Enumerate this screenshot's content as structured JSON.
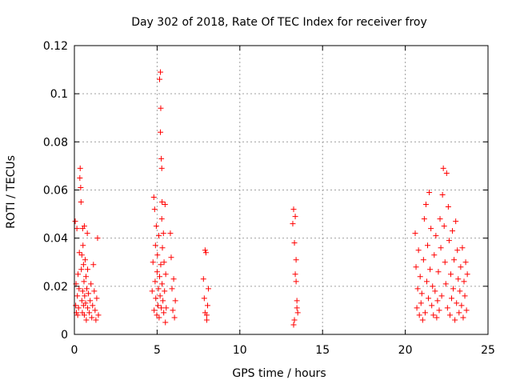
{
  "chart_data": {
    "type": "scatter",
    "title": "Day 302 of 2018, Rate Of TEC Index for receiver froy",
    "xlabel": "GPS time / hours",
    "ylabel": "ROTI / TECUs",
    "xlim": [
      0,
      25
    ],
    "ylim": [
      0,
      0.12
    ],
    "xticks": [
      0,
      5,
      10,
      15,
      20,
      25
    ],
    "xtick_labels": [
      "0",
      "5",
      "10",
      "15",
      "20",
      "25"
    ],
    "yticks": [
      0,
      0.02,
      0.04,
      0.06,
      0.08,
      0.1,
      0.12
    ],
    "ytick_labels": [
      "0",
      "0.02",
      "0.04",
      "0.06",
      "0.08",
      "0.1",
      "0.12"
    ],
    "grid": true,
    "marker": "+",
    "marker_color": "#ff0000",
    "series": [
      {
        "name": "ROTI",
        "x": [
          0.05,
          0.08,
          0.1,
          0.12,
          0.15,
          0.18,
          0.2,
          0.22,
          0.25,
          0.28,
          0.3,
          0.33,
          0.35,
          0.38,
          0.4,
          0.42,
          0.45,
          0.45,
          0.48,
          0.5,
          0.5,
          0.52,
          0.55,
          0.55,
          0.58,
          0.6,
          0.6,
          0.62,
          0.65,
          0.68,
          0.7,
          0.72,
          0.75,
          0.78,
          0.8,
          0.8,
          0.85,
          0.9,
          0.95,
          1.0,
          1.05,
          1.1,
          1.15,
          1.2,
          1.25,
          1.3,
          1.35,
          1.4,
          1.45,
          4.7,
          4.75,
          4.8,
          4.82,
          4.85,
          4.88,
          4.9,
          4.92,
          4.95,
          4.98,
          5.0,
          5.02,
          5.05,
          5.08,
          5.1,
          5.12,
          5.15,
          5.15,
          5.18,
          5.2,
          5.2,
          5.22,
          5.22,
          5.25,
          5.25,
          5.28,
          5.28,
          5.3,
          5.3,
          5.32,
          5.35,
          5.38,
          5.4,
          5.42,
          5.45,
          5.48,
          5.5,
          5.52,
          5.55,
          5.8,
          5.85,
          5.9,
          5.95,
          6.0,
          6.05,
          6.1,
          7.8,
          7.85,
          7.9,
          7.95,
          8.0,
          8.05,
          8.1,
          7.9,
          8.0,
          13.2,
          13.25,
          13.3,
          13.35,
          13.4,
          13.45,
          13.5,
          13.3,
          13.4,
          13.35,
          13.25,
          13.45,
          20.6,
          20.65,
          20.7,
          20.75,
          20.8,
          20.85,
          20.9,
          20.95,
          21.0,
          21.05,
          21.1,
          21.15,
          21.2,
          21.25,
          21.3,
          21.35,
          21.4,
          21.45,
          21.5,
          21.55,
          21.6,
          21.65,
          21.7,
          21.75,
          21.8,
          21.85,
          21.9,
          21.95,
          22.0,
          22.05,
          22.1,
          22.15,
          22.2,
          22.25,
          22.3,
          22.35,
          22.4,
          22.45,
          22.5,
          22.55,
          22.6,
          22.65,
          22.7,
          22.75,
          22.8,
          22.85,
          22.9,
          22.95,
          23.0,
          23.05,
          23.1,
          23.15,
          23.2,
          23.25,
          23.3,
          23.35,
          23.4,
          23.45,
          23.5,
          23.55,
          23.6,
          23.65,
          23.7,
          23.75
        ],
        "y": [
          0.047,
          0.012,
          0.021,
          0.009,
          0.044,
          0.016,
          0.008,
          0.025,
          0.011,
          0.019,
          0.034,
          0.065,
          0.069,
          0.061,
          0.055,
          0.027,
          0.014,
          0.033,
          0.009,
          0.044,
          0.018,
          0.037,
          0.012,
          0.029,
          0.022,
          0.045,
          0.008,
          0.016,
          0.031,
          0.013,
          0.024,
          0.006,
          0.019,
          0.042,
          0.011,
          0.027,
          0.017,
          0.009,
          0.014,
          0.021,
          0.007,
          0.012,
          0.029,
          0.018,
          0.01,
          0.006,
          0.015,
          0.04,
          0.008,
          0.018,
          0.03,
          0.057,
          0.01,
          0.052,
          0.022,
          0.037,
          0.015,
          0.045,
          0.008,
          0.026,
          0.033,
          0.012,
          0.019,
          0.041,
          0.007,
          0.024,
          0.106,
          0.016,
          0.109,
          0.084,
          0.029,
          0.094,
          0.011,
          0.073,
          0.048,
          0.069,
          0.055,
          0.021,
          0.036,
          0.014,
          0.042,
          0.009,
          0.03,
          0.018,
          0.054,
          0.005,
          0.025,
          0.011,
          0.042,
          0.032,
          0.019,
          0.01,
          0.023,
          0.007,
          0.014,
          0.023,
          0.015,
          0.009,
          0.034,
          0.006,
          0.012,
          0.019,
          0.035,
          0.008,
          0.046,
          0.052,
          0.038,
          0.025,
          0.031,
          0.014,
          0.009,
          0.006,
          0.022,
          0.049,
          0.004,
          0.011,
          0.042,
          0.028,
          0.011,
          0.019,
          0.035,
          0.008,
          0.024,
          0.013,
          0.017,
          0.006,
          0.031,
          0.048,
          0.009,
          0.054,
          0.022,
          0.037,
          0.015,
          0.059,
          0.027,
          0.044,
          0.012,
          0.02,
          0.008,
          0.033,
          0.018,
          0.041,
          0.007,
          0.014,
          0.026,
          0.01,
          0.048,
          0.036,
          0.016,
          0.058,
          0.069,
          0.045,
          0.03,
          0.021,
          0.067,
          0.011,
          0.053,
          0.039,
          0.008,
          0.025,
          0.015,
          0.043,
          0.019,
          0.031,
          0.006,
          0.047,
          0.013,
          0.035,
          0.023,
          0.009,
          0.018,
          0.028,
          0.012,
          0.036,
          0.007,
          0.022,
          0.016,
          0.03,
          0.01,
          0.025
        ]
      }
    ]
  }
}
